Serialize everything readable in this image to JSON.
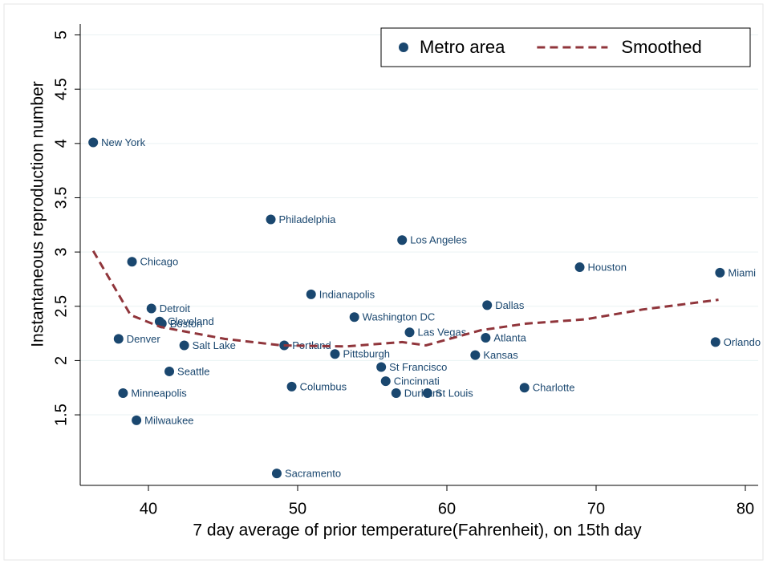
{
  "chart_data": {
    "type": "scatter",
    "x_label": "7 day average of prior temperature(Fahrenheit), on 15th day",
    "y_label": "Instantaneous reproduction number",
    "xlim": [
      35.43,
      80.86
    ],
    "ylim": [
      0.85,
      5.1
    ],
    "xticks": [
      40,
      50,
      60,
      70,
      80
    ],
    "yticks": [
      1.5,
      2,
      2.5,
      3,
      3.5,
      4,
      4.5,
      5
    ],
    "grid": true,
    "legend": "top-right",
    "series": [
      {
        "name": "Metro area",
        "type": "scatter",
        "color": "#1a476f",
        "labels": [
          "New York",
          "Philadelphia",
          "Los Angeles",
          "Chicago",
          "Houston",
          "Miami",
          "Indianapolis",
          "Detroit",
          "Dallas",
          "Washington DC",
          "Cleveland",
          "Boston",
          "Las Vegas",
          "Denver",
          "Atlanta",
          "Salt Lake",
          "Portland",
          "Orlando",
          "Pittsburgh",
          "Kansas",
          "St Francisco",
          "Seattle",
          "Cincinnati",
          "Columbus",
          "Charlotte",
          "Minneapolis",
          "Durham",
          "St Louis",
          "Milwaukee",
          "Sacramento"
        ],
        "x": [
          36.3,
          48.2,
          57.0,
          38.9,
          68.9,
          78.3,
          50.9,
          40.2,
          62.7,
          53.8,
          40.75,
          40.9,
          57.5,
          38.0,
          62.6,
          42.4,
          49.1,
          78.0,
          52.5,
          61.9,
          55.6,
          41.4,
          55.9,
          49.6,
          65.2,
          38.3,
          56.6,
          58.7,
          39.2,
          48.6
        ],
        "values": [
          4.01,
          3.3,
          3.11,
          2.91,
          2.86,
          2.81,
          2.61,
          2.48,
          2.51,
          2.4,
          2.36,
          2.34,
          2.26,
          2.2,
          2.21,
          2.14,
          2.14,
          2.17,
          2.06,
          2.05,
          1.94,
          1.9,
          1.81,
          1.76,
          1.75,
          1.7,
          1.7,
          1.7,
          1.45,
          0.96
        ]
      },
      {
        "name": "Smoothed",
        "type": "line",
        "color": "#90353b",
        "dashed": true,
        "x": [
          36.3,
          38.8,
          40.8,
          45.1,
          48.9,
          53.2,
          57.0,
          58.6,
          62.3,
          65.3,
          69.3,
          73.1,
          78.2
        ],
        "values": [
          3.01,
          2.42,
          2.31,
          2.2,
          2.14,
          2.13,
          2.17,
          2.14,
          2.28,
          2.34,
          2.38,
          2.47,
          2.56
        ]
      }
    ]
  }
}
